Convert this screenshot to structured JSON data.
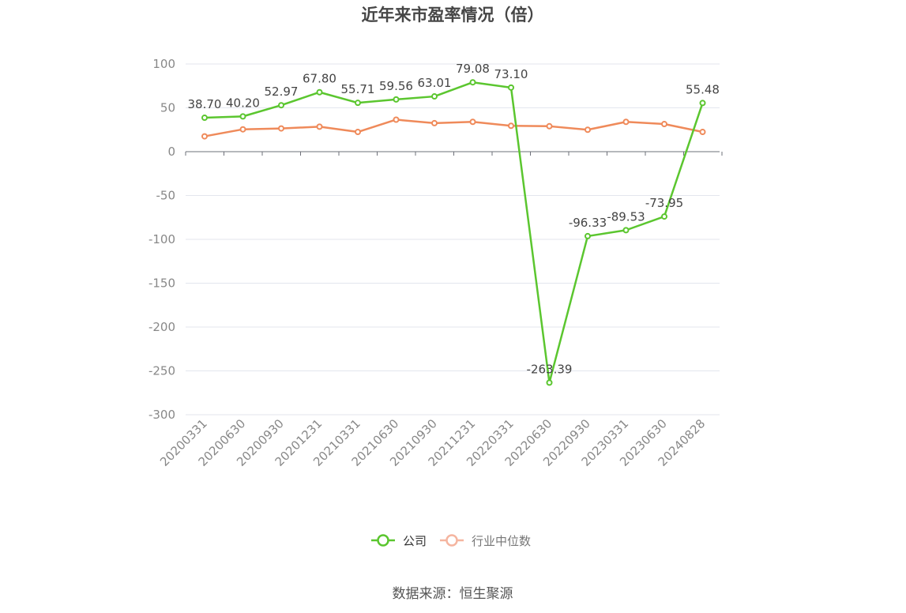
{
  "chart_data": {
    "type": "line",
    "title": "近年来市盈率情况（倍）",
    "categories": [
      "20200331",
      "20200630",
      "20200930",
      "20201231",
      "20210331",
      "20210630",
      "20210930",
      "20211231",
      "20220331",
      "20220630",
      "20220930",
      "20230331",
      "20230630",
      "20240828"
    ],
    "series": [
      {
        "name": "公司",
        "color": "#5bc62f",
        "values": [
          38.7,
          40.2,
          52.97,
          67.8,
          55.71,
          59.56,
          63.01,
          79.08,
          73.1,
          -263.39,
          -96.33,
          -89.53,
          -73.95,
          55.48
        ],
        "labels": [
          "38.70",
          "40.20",
          "52.97",
          "67.80",
          "55.71",
          "59.56",
          "63.01",
          "79.08",
          "73.10",
          "-263.39",
          "-96.33",
          "-89.53",
          "-73.95",
          "55.48"
        ]
      },
      {
        "name": "行业中位数",
        "color": "#ef8a5a",
        "values": [
          17.5,
          25.5,
          26.5,
          28.5,
          22.5,
          36.5,
          32.5,
          34.0,
          29.5,
          29.0,
          25.0,
          34.0,
          31.5,
          22.5
        ]
      }
    ],
    "yticks": [
      100,
      50,
      0,
      -50,
      -100,
      -150,
      -200,
      -250,
      -300
    ],
    "ylim": [
      -300,
      100
    ],
    "grid": true,
    "legend_position": "bottom-center"
  },
  "footer": {
    "source": "数据来源：恒生聚源"
  }
}
